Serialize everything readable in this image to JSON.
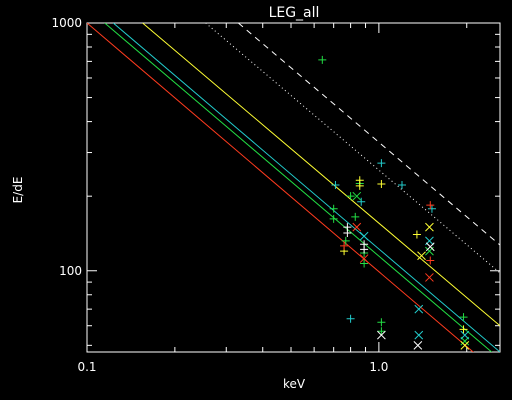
{
  "chart_data": {
    "type": "scatter",
    "title": "LEG_all",
    "xlabel": "keV",
    "ylabel": "E/dE",
    "xscale": "log",
    "yscale": "log",
    "xlim": [
      0.1,
      2.6
    ],
    "ylim": [
      47,
      1000
    ],
    "x_tick_labels": [
      {
        "value": 0.1,
        "label": "0.1"
      },
      {
        "value": 1.0,
        "label": "1.0"
      }
    ],
    "y_tick_labels": [
      {
        "value": 100,
        "label": "100"
      },
      {
        "value": 1000,
        "label": "1000"
      }
    ],
    "grid": false,
    "reference_lines": [
      {
        "color": "#ff3b1e",
        "style": "solid",
        "x1": 0.1,
        "y1": 1000,
        "x2": 2.6,
        "y2": 38
      },
      {
        "color": "#22dd44",
        "style": "solid",
        "x1": 0.115,
        "y1": 1000,
        "x2": 2.6,
        "y2": 44
      },
      {
        "color": "#22cccc",
        "style": "solid",
        "x1": 0.123,
        "y1": 1000,
        "x2": 2.6,
        "y2": 47
      },
      {
        "color": "#ffff33",
        "style": "solid",
        "x1": 0.155,
        "y1": 1000,
        "x2": 2.6,
        "y2": 60
      },
      {
        "color": "#ffffff",
        "style": "dotted",
        "x1": 0.255,
        "y1": 1000,
        "x2": 2.6,
        "y2": 98
      },
      {
        "color": "#ffffff",
        "style": "dashed",
        "x1": 0.33,
        "y1": 1000,
        "x2": 2.6,
        "y2": 127
      }
    ],
    "series": [
      {
        "color": "#22dd44",
        "marker": "plus",
        "points": [
          [
            0.64,
            710
          ],
          [
            0.7,
            178
          ],
          [
            0.7,
            162
          ],
          [
            0.77,
            132
          ],
          [
            0.8,
            200
          ],
          [
            0.83,
            165
          ],
          [
            0.86,
            225
          ],
          [
            0.89,
            118
          ],
          [
            0.89,
            107
          ],
          [
            1.02,
            62
          ],
          [
            1.02,
            57
          ],
          [
            1.95,
            65
          ]
        ]
      },
      {
        "color": "#22cccc",
        "marker": "plus",
        "points": [
          [
            0.71,
            222
          ],
          [
            0.8,
            64
          ],
          [
            0.87,
            190
          ],
          [
            1.02,
            272
          ],
          [
            1.2,
            222
          ],
          [
            1.52,
            178
          ]
        ]
      },
      {
        "color": "#ffff33",
        "marker": "plus",
        "points": [
          [
            0.76,
            120
          ],
          [
            0.86,
            232
          ],
          [
            0.86,
            220
          ],
          [
            1.02,
            224
          ],
          [
            1.35,
            140
          ],
          [
            1.95,
            58
          ]
        ]
      },
      {
        "color": "#ffffff",
        "marker": "plus",
        "points": [
          [
            0.78,
            150
          ],
          [
            0.78,
            142
          ],
          [
            0.89,
            128
          ],
          [
            0.89,
            122
          ]
        ]
      },
      {
        "color": "#ff3b1e",
        "marker": "plus",
        "points": [
          [
            0.76,
            126
          ],
          [
            1.5,
            184
          ],
          [
            1.5,
            110
          ]
        ]
      },
      {
        "color": "#ff3b1e",
        "marker": "cross",
        "points": [
          [
            0.84,
            150
          ],
          [
            0.89,
            112
          ],
          [
            1.49,
            94
          ]
        ]
      },
      {
        "color": "#22dd44",
        "marker": "cross",
        "points": [
          [
            0.84,
            200
          ],
          [
            1.49,
            120
          ],
          [
            1.97,
            52
          ]
        ]
      },
      {
        "color": "#22cccc",
        "marker": "cross",
        "points": [
          [
            0.89,
            138
          ],
          [
            1.37,
            70
          ],
          [
            1.37,
            55
          ],
          [
            1.49,
            132
          ],
          [
            1.97,
            55
          ]
        ]
      },
      {
        "color": "#ffffff",
        "marker": "cross",
        "points": [
          [
            1.02,
            55
          ],
          [
            1.36,
            50
          ],
          [
            1.5,
            125
          ]
        ]
      },
      {
        "color": "#ffff33",
        "marker": "cross",
        "points": [
          [
            1.4,
            115
          ],
          [
            1.49,
            150
          ],
          [
            1.97,
            50
          ]
        ]
      }
    ]
  }
}
